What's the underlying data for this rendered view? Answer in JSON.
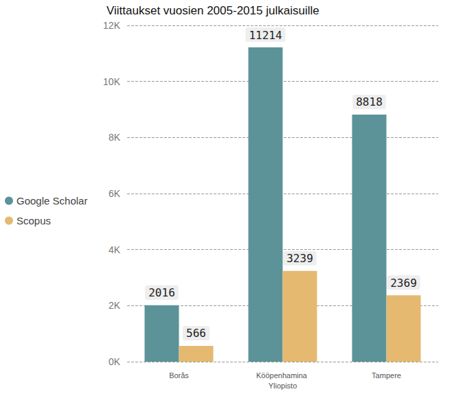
{
  "chart_data": {
    "type": "bar",
    "title": "Viittaukset vuosien 2005-2015 julkaisuille",
    "categories": [
      "Borås",
      "Kööpenhamina Yliopisto",
      "Tampere"
    ],
    "series": [
      {
        "name": "Google Scholar",
        "color": "#5b9399",
        "values": [
          2016,
          11214,
          8818
        ]
      },
      {
        "name": "Scopus",
        "color": "#e5b96f",
        "values": [
          566,
          3239,
          2369
        ]
      }
    ],
    "ylim": [
      0,
      12000
    ],
    "yticks": [
      {
        "value": 0,
        "label": "0K"
      },
      {
        "value": 2000,
        "label": "2K"
      },
      {
        "value": 4000,
        "label": "4K"
      },
      {
        "value": 6000,
        "label": "6K"
      },
      {
        "value": 8000,
        "label": "8K"
      },
      {
        "value": 10000,
        "label": "10K"
      },
      {
        "value": 12000,
        "label": "12K"
      }
    ],
    "grid": true,
    "legend": "left",
    "data_labels": true
  }
}
